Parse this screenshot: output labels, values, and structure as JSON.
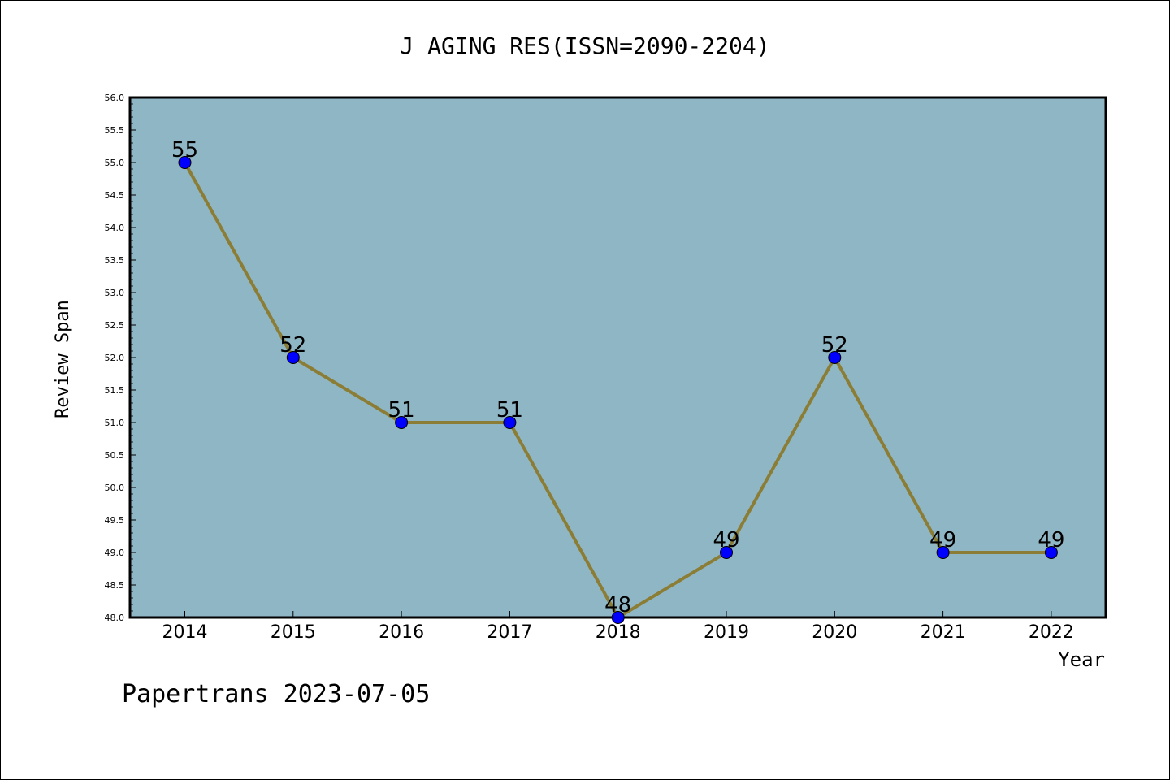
{
  "chart_data": {
    "type": "line",
    "title": "J AGING RES(ISSN=2090-2204)",
    "xlabel": "Year",
    "ylabel": "Review Span",
    "footer": "Papertrans 2023-07-05",
    "categories": [
      "2014",
      "2015",
      "2016",
      "2017",
      "2018",
      "2019",
      "2020",
      "2021",
      "2022"
    ],
    "series": [
      {
        "values": [
          55,
          52,
          51,
          51,
          48,
          49,
          52,
          49,
          49
        ]
      }
    ],
    "data_labels": [
      "55",
      "52",
      "51",
      "51",
      "48",
      "49",
      "52",
      "49",
      "49"
    ],
    "ylim": [
      48.0,
      56.0
    ],
    "yticks": [
      "48.0",
      "48.5",
      "49.0",
      "49.5",
      "50.0",
      "50.5",
      "51.0",
      "51.5",
      "52.0",
      "52.5",
      "53.0",
      "53.5",
      "54.0",
      "54.5",
      "55.0",
      "55.5",
      "56.0"
    ],
    "grid": false,
    "colors": {
      "plot_background": "#8fb6c4",
      "line": "#8b7d35",
      "marker": "#0000ff"
    }
  }
}
